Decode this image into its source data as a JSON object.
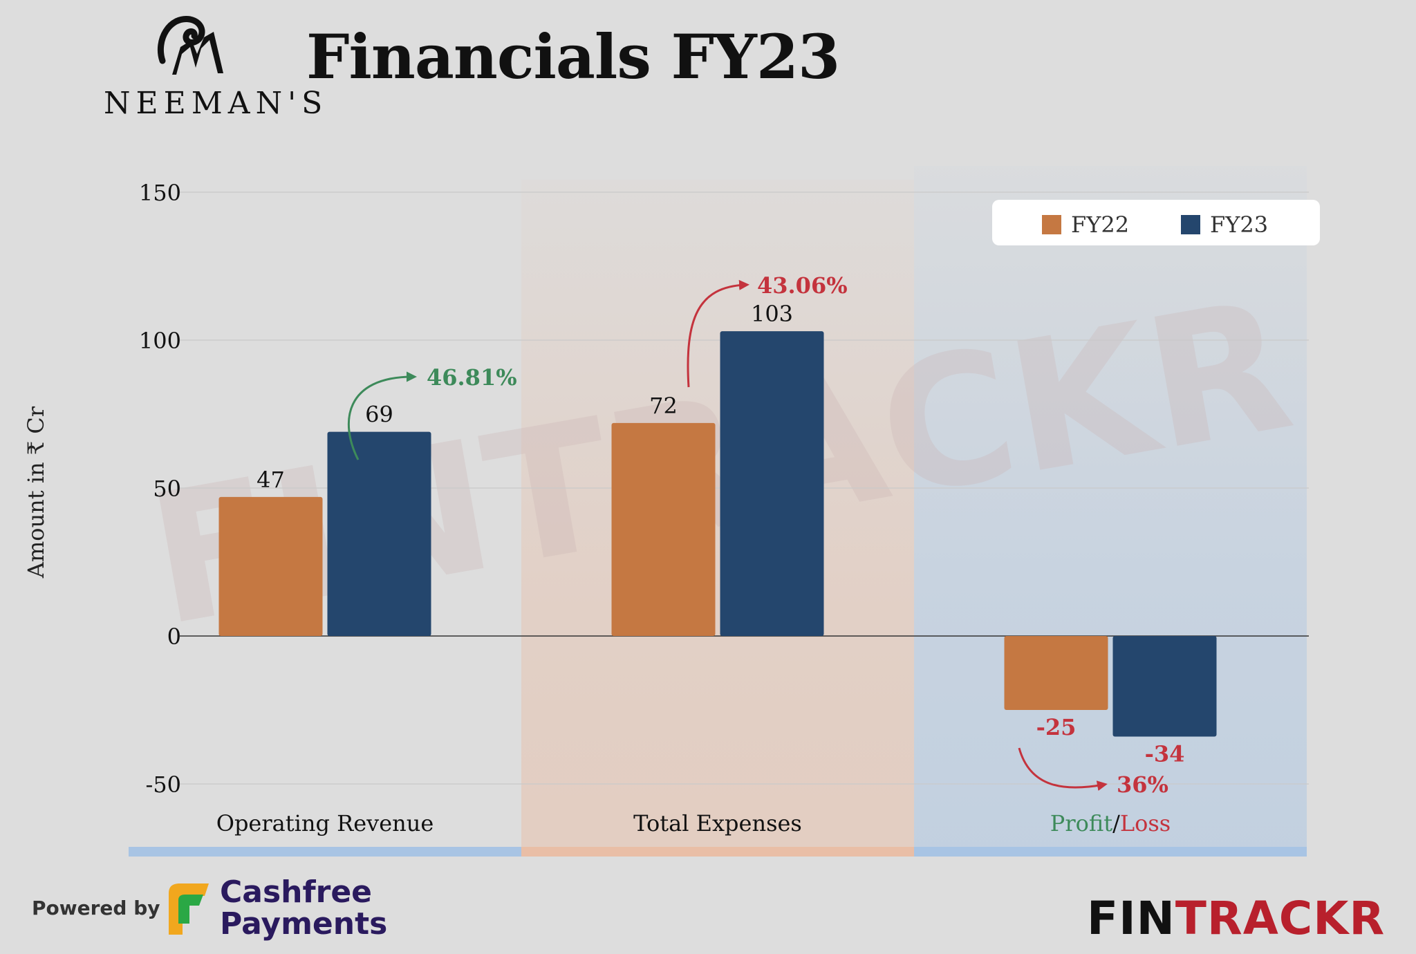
{
  "brand": {
    "name": "NEEMAN'S",
    "logo_icon": "ram-logo-icon"
  },
  "title": "Financials FY23",
  "footer": {
    "powered_label": "Powered by",
    "cashfree_line1": "Cashfree",
    "cashfree_line2": "Payments",
    "fintrackr_part1": "FIN",
    "fintrackr_part2": "TRACKR"
  },
  "colors": {
    "fy22": "#c57842",
    "fy23": "#24466d",
    "green": "#3d8a5a",
    "red": "#c4333d",
    "panel_blue": "#a8c4e4",
    "panel_peach": "#e9bea6"
  },
  "chart_data": {
    "type": "bar",
    "title": "",
    "ylabel": "Amount in ₹ Cr",
    "xlabel": "",
    "ylim": [
      -50,
      150
    ],
    "yticks": [
      150,
      100,
      50,
      0,
      -50
    ],
    "grid": true,
    "legend_position": "top-right",
    "categories": [
      "Operating Revenue",
      "Total Expenses",
      "Profit/Loss"
    ],
    "category_parts": [
      [
        {
          "text": "Operating Revenue",
          "color": "#111111"
        }
      ],
      [
        {
          "text": "Total Expenses",
          "color": "#111111"
        }
      ],
      [
        {
          "text": "Profit",
          "color": "#3d8a5a"
        },
        {
          "text": "/",
          "color": "#111111"
        },
        {
          "text": "Loss",
          "color": "#c4333d"
        }
      ]
    ],
    "series": [
      {
        "name": "FY22",
        "values": [
          47,
          72,
          -25
        ]
      },
      {
        "name": "FY23",
        "values": [
          69,
          103,
          -34
        ]
      }
    ],
    "value_labels": [
      [
        "47",
        "72",
        "-25"
      ],
      [
        "69",
        "103",
        "-34"
      ]
    ],
    "growth_annotations": [
      "46.81%",
      "43.06%",
      "36%"
    ],
    "watermark": "FINTRACKR"
  }
}
